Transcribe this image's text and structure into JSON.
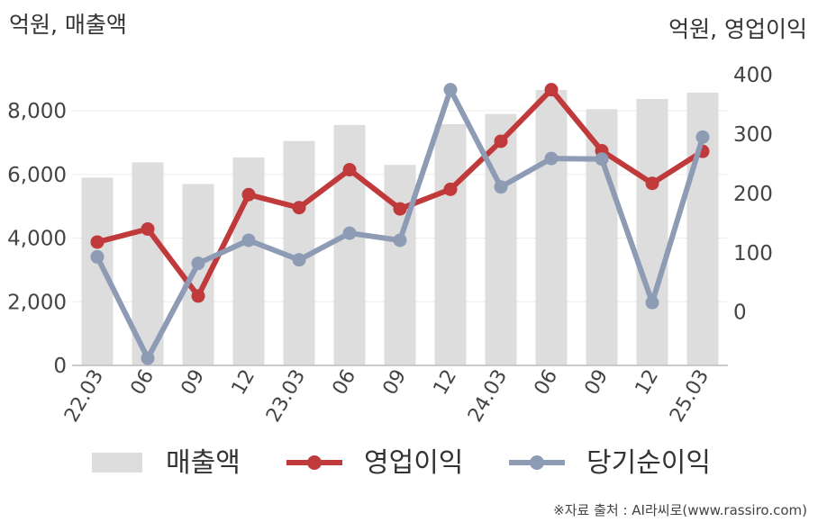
{
  "chart_data": {
    "type": "bar+line",
    "left_axis_unit": "억원, 매출액",
    "right_axis_unit": "억원, 영업이익",
    "categories": [
      "22.03",
      "06",
      "09",
      "12",
      "23.03",
      "06",
      "09",
      "12",
      "24.03",
      "06",
      "09",
      "12",
      "25.03"
    ],
    "left_ylim": [
      0,
      9500
    ],
    "left_ticks": [
      {
        "value": 0,
        "label": "0"
      },
      {
        "value": 2000,
        "label": "2,000"
      },
      {
        "value": 4000,
        "label": "4,000"
      },
      {
        "value": 6000,
        "label": "6,000"
      },
      {
        "value": 8000,
        "label": "8,000"
      }
    ],
    "right_ylim": [
      -90,
      420
    ],
    "right_ticks": [
      {
        "value": 0,
        "label": "0"
      },
      {
        "value": 100,
        "label": "100"
      },
      {
        "value": 200,
        "label": "200"
      },
      {
        "value": 300,
        "label": "300"
      },
      {
        "value": 400,
        "label": "400"
      }
    ],
    "grid": true,
    "legend_position": "bottom",
    "series": [
      {
        "name": "매출액",
        "type": "bar",
        "axis": "left",
        "color": "#dddddd",
        "values": [
          5900,
          6380,
          5700,
          6530,
          7050,
          7550,
          6300,
          7580,
          7900,
          8650,
          8050,
          8370,
          8570
        ]
      },
      {
        "name": "영업이익",
        "type": "line",
        "axis": "right",
        "color": "#c0393b",
        "values": [
          118,
          140,
          27,
          198,
          176,
          240,
          174,
          207,
          288,
          375,
          272,
          217,
          271
        ]
      },
      {
        "name": "당기순이익",
        "type": "line",
        "axis": "right",
        "color": "#8d9bb5",
        "values": [
          93,
          -78,
          82,
          121,
          88,
          133,
          121,
          375,
          211,
          259,
          258,
          16,
          295
        ]
      }
    ],
    "source": "※자료 출처 : AI라씨로(www.rassiro.com)"
  }
}
